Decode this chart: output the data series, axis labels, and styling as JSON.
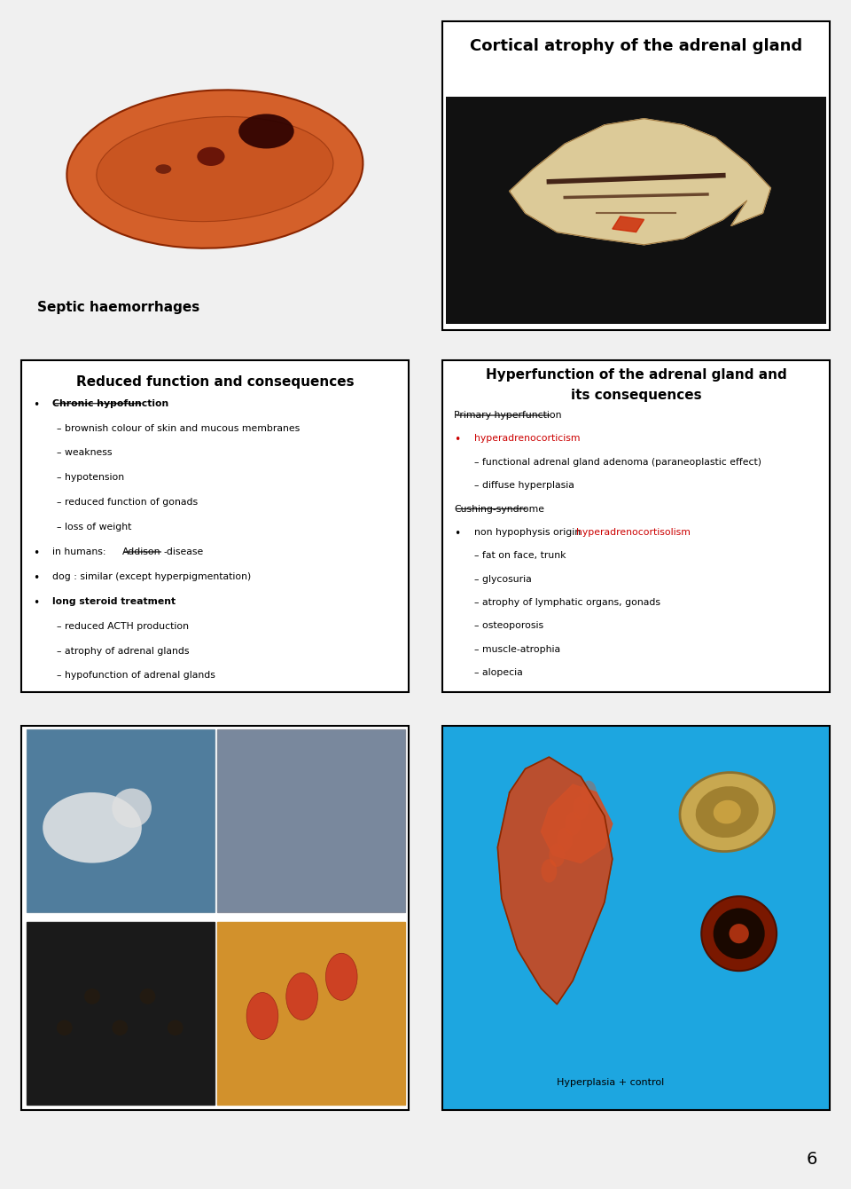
{
  "page_bg": "#f0f0f0",
  "page_number": "6",
  "panel1": {
    "bg_color": "#7ab4d8",
    "label": "Septic haemorrhages",
    "label_color": "#000000",
    "label_fontsize": 11,
    "label_bold": true
  },
  "panel2": {
    "bg_color": "#ffffff",
    "border_color": "#000000",
    "title": "Cortical atrophy of the adrenal gland",
    "title_fontsize": 13,
    "title_bold": true,
    "image_bg": "#111111"
  },
  "panel3": {
    "bg_color": "#ffffff",
    "border_color": "#000000",
    "title": "Reduced function and consequences",
    "title_fontsize": 11,
    "title_bold": true,
    "content": [
      {
        "type": "bullet",
        "text": "Chronic hypofunction",
        "bold": true,
        "underline": true
      },
      {
        "type": "dash",
        "text": "brownish colour of skin and mucous membranes"
      },
      {
        "type": "dash",
        "text": "weakness"
      },
      {
        "type": "dash",
        "text": "hypotension"
      },
      {
        "type": "dash",
        "text": "reduced function of gonads"
      },
      {
        "type": "dash",
        "text": "loss of weight"
      },
      {
        "type": "bullet_addison"
      },
      {
        "type": "bullet",
        "text": "dog : similar (except hyperpigmentation)",
        "bold": false,
        "underline": false
      },
      {
        "type": "bullet",
        "text": "long steroid treatment",
        "bold": true,
        "underline": false
      },
      {
        "type": "dash",
        "text": "reduced ACTH production"
      },
      {
        "type": "dash",
        "text": "atrophy of adrenal glands"
      },
      {
        "type": "dash",
        "text": "hypofunction of adrenal glands"
      }
    ]
  },
  "panel4": {
    "bg_color": "#ffffff",
    "border_color": "#000000",
    "title_line1": "Hyperfunction of the adrenal gland and",
    "title_line2": "its consequences",
    "title_fontsize": 11,
    "title_bold": true,
    "content": [
      {
        "type": "heading",
        "text": "Primary hyperfunction"
      },
      {
        "type": "bullet_red",
        "text": "hyperadrenocorticism",
        "color": "#cc0000"
      },
      {
        "type": "dash",
        "text": "functional adrenal gland adenoma (paraneoplastic effect)"
      },
      {
        "type": "dash",
        "text": "diffuse hyperplasia"
      },
      {
        "type": "heading",
        "text": "Cushing-syndrome"
      },
      {
        "type": "bullet_mixed",
        "text_black": "non hypophysis origin ",
        "text_red": "hyperadrenocortisolism",
        "color_red": "#cc0000"
      },
      {
        "type": "dash",
        "text": "fat on face, trunk"
      },
      {
        "type": "dash",
        "text": "glycosuria"
      },
      {
        "type": "dash",
        "text": "atrophy of lymphatic organs, gonads"
      },
      {
        "type": "dash",
        "text": "osteoporosis"
      },
      {
        "type": "dash",
        "text": "muscle-atrophia"
      },
      {
        "type": "dash",
        "text": "alopecia"
      }
    ]
  },
  "panel5": {
    "bg_color": "#ffffff",
    "border_color": "#000000",
    "grid_colors": [
      "#4a7a9b",
      "#6a8aab",
      "#1a1a1a",
      "#c89040"
    ]
  },
  "panel6": {
    "bg_color": "#1da6e0",
    "label": "Hyperplasia + control",
    "label_color": "#000000",
    "label_fontsize": 8
  }
}
